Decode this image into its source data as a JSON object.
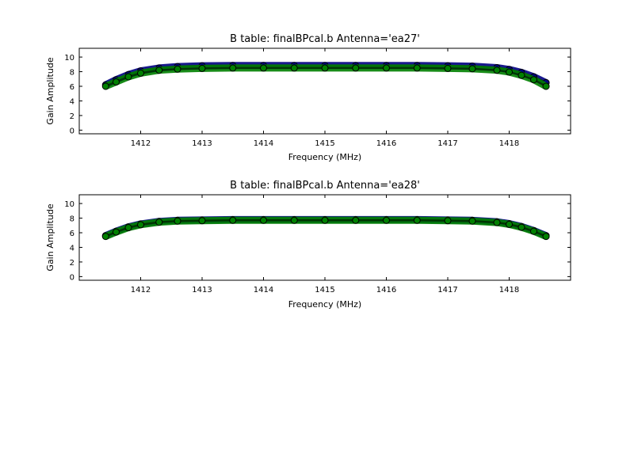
{
  "chart_data": [
    {
      "type": "scatter",
      "title": "B table: finalBPcal.b      Antenna='ea27'",
      "xlabel": "Frequency (MHz)",
      "ylabel": "Gain Amplitude",
      "xlim": [
        1411.0,
        1419.0
      ],
      "ylim": [
        -0.5,
        11.2
      ],
      "xticks": [
        1412,
        1413,
        1414,
        1415,
        1416,
        1417,
        1418
      ],
      "yticks": [
        0,
        2,
        4,
        6,
        8,
        10
      ],
      "grid": false,
      "legend": "none",
      "series": [
        {
          "color": "#000080",
          "x": [
            1411.43,
            1411.6,
            1411.8,
            1412.0,
            1412.3,
            1412.6,
            1413.0,
            1413.5,
            1414.0,
            1414.5,
            1415.0,
            1415.5,
            1416.0,
            1416.5,
            1417.0,
            1417.4,
            1417.8,
            1418.0,
            1418.2,
            1418.4,
            1418.6
          ],
          "values": [
            6.2,
            6.9,
            7.6,
            8.1,
            8.5,
            8.7,
            8.8,
            8.85,
            8.85,
            8.85,
            8.85,
            8.85,
            8.85,
            8.85,
            8.8,
            8.75,
            8.55,
            8.3,
            7.9,
            7.3,
            6.5
          ]
        },
        {
          "color": "#008000",
          "x": [
            1411.43,
            1411.6,
            1411.8,
            1412.0,
            1412.3,
            1412.6,
            1413.0,
            1413.5,
            1414.0,
            1414.5,
            1415.0,
            1415.5,
            1416.0,
            1416.5,
            1417.0,
            1417.4,
            1417.8,
            1418.0,
            1418.2,
            1418.4,
            1418.6
          ],
          "values": [
            6.0,
            6.6,
            7.3,
            7.8,
            8.2,
            8.35,
            8.45,
            8.5,
            8.5,
            8.5,
            8.5,
            8.5,
            8.5,
            8.5,
            8.45,
            8.4,
            8.2,
            7.95,
            7.5,
            6.9,
            6.0
          ]
        }
      ]
    },
    {
      "type": "scatter",
      "title": "B table: finalBPcal.b      Antenna='ea28'",
      "xlabel": "Frequency (MHz)",
      "ylabel": "Gain Amplitude",
      "xlim": [
        1411.0,
        1419.0
      ],
      "ylim": [
        -0.5,
        11.2
      ],
      "xticks": [
        1412,
        1413,
        1414,
        1415,
        1416,
        1417,
        1418
      ],
      "yticks": [
        0,
        2,
        4,
        6,
        8,
        10
      ],
      "grid": false,
      "legend": "none",
      "series": [
        {
          "color": "#000080",
          "x": [
            1411.43,
            1411.6,
            1411.8,
            1412.0,
            1412.3,
            1412.6,
            1413.0,
            1413.5,
            1414.0,
            1414.5,
            1415.0,
            1415.5,
            1416.0,
            1416.5,
            1417.0,
            1417.4,
            1417.8,
            1418.0,
            1418.2,
            1418.4,
            1418.6
          ],
          "values": [
            5.6,
            6.2,
            6.8,
            7.2,
            7.55,
            7.7,
            7.75,
            7.8,
            7.8,
            7.8,
            7.8,
            7.8,
            7.8,
            7.8,
            7.75,
            7.7,
            7.5,
            7.25,
            6.85,
            6.3,
            5.6
          ]
        },
        {
          "color": "#008000",
          "x": [
            1411.43,
            1411.6,
            1411.8,
            1412.0,
            1412.3,
            1412.6,
            1413.0,
            1413.5,
            1414.0,
            1414.5,
            1415.0,
            1415.5,
            1416.0,
            1416.5,
            1417.0,
            1417.4,
            1417.8,
            1418.0,
            1418.2,
            1418.4,
            1418.6
          ],
          "values": [
            5.5,
            6.1,
            6.7,
            7.1,
            7.45,
            7.6,
            7.65,
            7.7,
            7.7,
            7.7,
            7.7,
            7.7,
            7.7,
            7.7,
            7.65,
            7.6,
            7.4,
            7.15,
            6.75,
            6.2,
            5.5
          ]
        }
      ]
    }
  ]
}
